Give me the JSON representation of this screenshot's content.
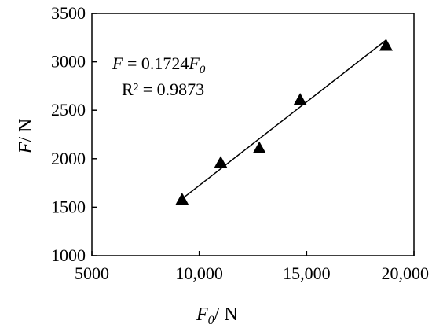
{
  "chart_data": {
    "type": "scatter",
    "xlabel": {
      "main": "F",
      "sub": "0",
      "unit": "/ N"
    },
    "ylabel": {
      "main": "F",
      "unit": "/ N"
    },
    "xlim": [
      5000,
      20000
    ],
    "ylim": [
      1000,
      3500
    ],
    "x_ticks": [
      5000,
      10000,
      15000,
      20000
    ],
    "x_tick_labels": [
      "5000",
      "10,000",
      "15,000",
      "20,000"
    ],
    "y_ticks": [
      1000,
      1500,
      2000,
      2500,
      3000,
      3500
    ],
    "y_tick_labels": [
      "1000",
      "1500",
      "2000",
      "2500",
      "3000",
      "3500"
    ],
    "grid": false,
    "series": [
      {
        "marker": "triangle",
        "color": "#000000",
        "points": [
          {
            "x": 9200,
            "y": 1580
          },
          {
            "x": 11000,
            "y": 1960
          },
          {
            "x": 12800,
            "y": 2110
          },
          {
            "x": 14700,
            "y": 2610
          },
          {
            "x": 18700,
            "y": 3170
          }
        ]
      }
    ],
    "trendline": {
      "slope": 0.1724,
      "intercept": 0,
      "x_range": [
        9200,
        18700
      ]
    },
    "annotations": {
      "equation": {
        "lhs": "F",
        "eq": " = 0.1724",
        "rhs_main": "F",
        "rhs_sub": "0"
      },
      "r2": "R² = 0.9873"
    }
  }
}
